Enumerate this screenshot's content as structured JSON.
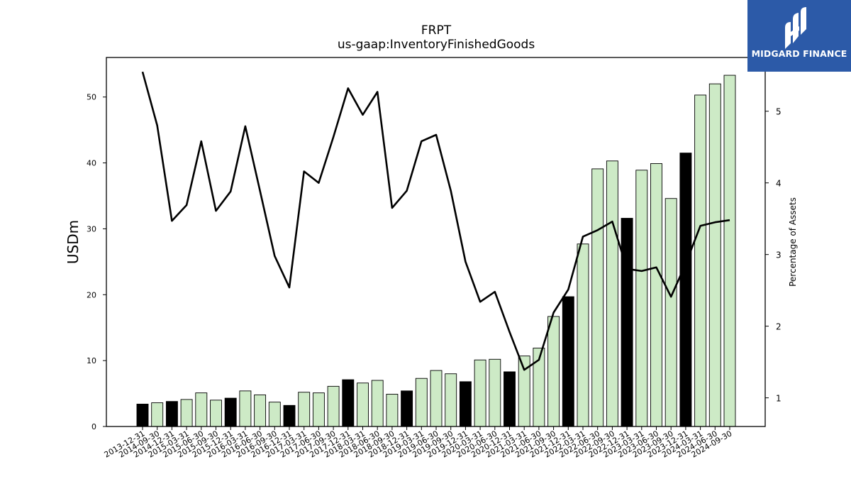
{
  "brand": {
    "name": "MIDGARD FINANCE",
    "logo_icon": "midgard-logo-icon",
    "bg_color": "#2c5aa8"
  },
  "chart_data": {
    "type": "bar+line",
    "title": "FRPT",
    "subtitle": "us-gaap:InventoryFinishedGoods",
    "ylabel_left": "USDm",
    "ylabel_right": "Percentage of Assets",
    "ylim_left": [
      0,
      56
    ],
    "ylim_right": [
      0.6,
      5.75
    ],
    "yticks_left": [
      0,
      10,
      20,
      30,
      40,
      50
    ],
    "yticks_right": [
      1,
      2,
      3,
      4,
      5
    ],
    "categories": [
      "2013-12-31",
      "2014-09-30",
      "2014-12-31",
      "2015-03-31",
      "2015-06-30",
      "2015-09-30",
      "2015-12-31",
      "2016-03-31",
      "2016-06-30",
      "2016-09-30",
      "2016-12-31",
      "2017-03-31",
      "2017-06-30",
      "2017-09-30",
      "2017-12-31",
      "2018-03-31",
      "2018-06-30",
      "2018-09-30",
      "2018-12-31",
      "2019-03-31",
      "2019-06-30",
      "2019-09-30",
      "2019-12-31",
      "2020-03-31",
      "2020-06-30",
      "2020-12-31",
      "2021-03-31",
      "2021-06-30",
      "2021-09-30",
      "2021-12-31",
      "2022-03-31",
      "2022-06-30",
      "2022-09-30",
      "2022-12-31",
      "2023-03-31",
      "2023-06-30",
      "2023-09-30",
      "2023-12-31",
      "2024-03-31",
      "2024-06-30",
      "2024-09-30"
    ],
    "series": [
      {
        "name": "USDm",
        "kind": "bar",
        "values": [
          3.4,
          3.6,
          3.8,
          4.1,
          5.1,
          4.0,
          4.3,
          5.4,
          4.8,
          3.7,
          3.2,
          5.2,
          5.1,
          6.1,
          7.1,
          6.6,
          7.0,
          4.9,
          5.4,
          7.3,
          8.5,
          8.0,
          6.8,
          10.1,
          10.2,
          8.3,
          10.7,
          11.9,
          16.7,
          19.7,
          27.7,
          39.1,
          40.3,
          31.6,
          38.9,
          39.9,
          34.6,
          41.5,
          50.3,
          52.0,
          53.3
        ],
        "year_end_flags": [
          1,
          0,
          1,
          0,
          0,
          0,
          1,
          0,
          0,
          0,
          1,
          0,
          0,
          0,
          1,
          0,
          0,
          0,
          1,
          0,
          0,
          0,
          1,
          0,
          0,
          1,
          0,
          0,
          0,
          1,
          0,
          0,
          0,
          1,
          0,
          0,
          0,
          1,
          0,
          0,
          0
        ],
        "year_end_color": "#000000",
        "quarter_color": "#cdeac6"
      },
      {
        "name": "Percentage of Assets",
        "kind": "line",
        "color": "#000000",
        "values": [
          5.55,
          4.8,
          3.47,
          3.69,
          4.58,
          3.61,
          3.88,
          4.79,
          3.89,
          2.98,
          2.54,
          4.16,
          4.0,
          4.64,
          5.32,
          4.95,
          5.27,
          3.65,
          3.89,
          4.58,
          4.67,
          3.89,
          2.9,
          2.34,
          2.48,
          1.92,
          1.39,
          1.53,
          2.19,
          2.51,
          3.25,
          3.34,
          3.46,
          2.8,
          2.77,
          2.82,
          2.41,
          2.87,
          3.4,
          3.45,
          3.48
        ]
      }
    ]
  }
}
